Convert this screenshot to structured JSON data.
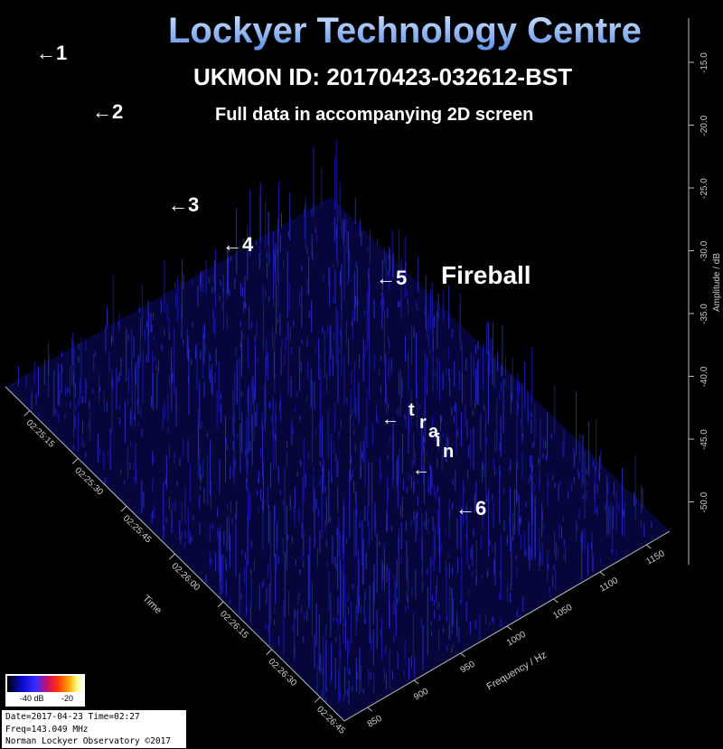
{
  "header": {
    "title": "Lockyer Technology Centre",
    "subtitle": "UKMON ID: 20170423-032612-BST",
    "note": "Full data in accompanying 2D screen"
  },
  "info_box": {
    "line1": "Date=2017-04-23 Time=02:27",
    "line2": "Freq=143.049 MHz",
    "line3": "Norman Lockyer Observatory ©2017"
  },
  "colorbar": {
    "label_low": "-40 dB",
    "label_high": "-20"
  },
  "colors": {
    "background": "#000000",
    "low": "#1010c0",
    "mid": "#3a3aff",
    "high": "#ff2a10",
    "peak": "#ffa020"
  },
  "chart_data": {
    "type": "3d-waterfall",
    "xlabel": "Frequency / Hz",
    "ylabel": "Time",
    "zlabel": "Amplitude / dB",
    "frequency_ticks": [
      "850",
      "900",
      "950",
      "1000",
      "1050",
      "1100",
      "1150"
    ],
    "time_ticks": [
      "02:25:15",
      "02:25:30",
      "02:25:45",
      "02:26:00",
      "02:26:15",
      "02:26:30",
      "02:26:45"
    ],
    "amplitude_ticks": [
      "-15.0",
      "-20.0",
      "-25.0",
      "-30.0",
      "-35.0",
      "-40.0",
      "-45.0",
      "-50.0"
    ],
    "amplitude_range": [
      -55,
      -12
    ],
    "annotations": [
      {
        "text": "←1",
        "time": "02:25:10",
        "freq": 855,
        "peak_db": -14
      },
      {
        "text": "←2",
        "time": "02:25:22",
        "freq": 900,
        "peak_db": -18
      },
      {
        "text": "←3",
        "time": "02:25:35",
        "freq": 920,
        "peak_db": -27
      },
      {
        "text": "←4",
        "time": "02:25:45",
        "freq": 960,
        "peak_db": -30
      },
      {
        "text": "←5",
        "time": "02:26:10",
        "freq": 1010,
        "peak_db": -30
      },
      {
        "text": "Fireball"
      },
      {
        "text": "←train"
      },
      {
        "text": "←"
      },
      {
        "text": "←6",
        "time": "02:26:25",
        "freq": 1060,
        "peak_db": -52
      }
    ]
  }
}
